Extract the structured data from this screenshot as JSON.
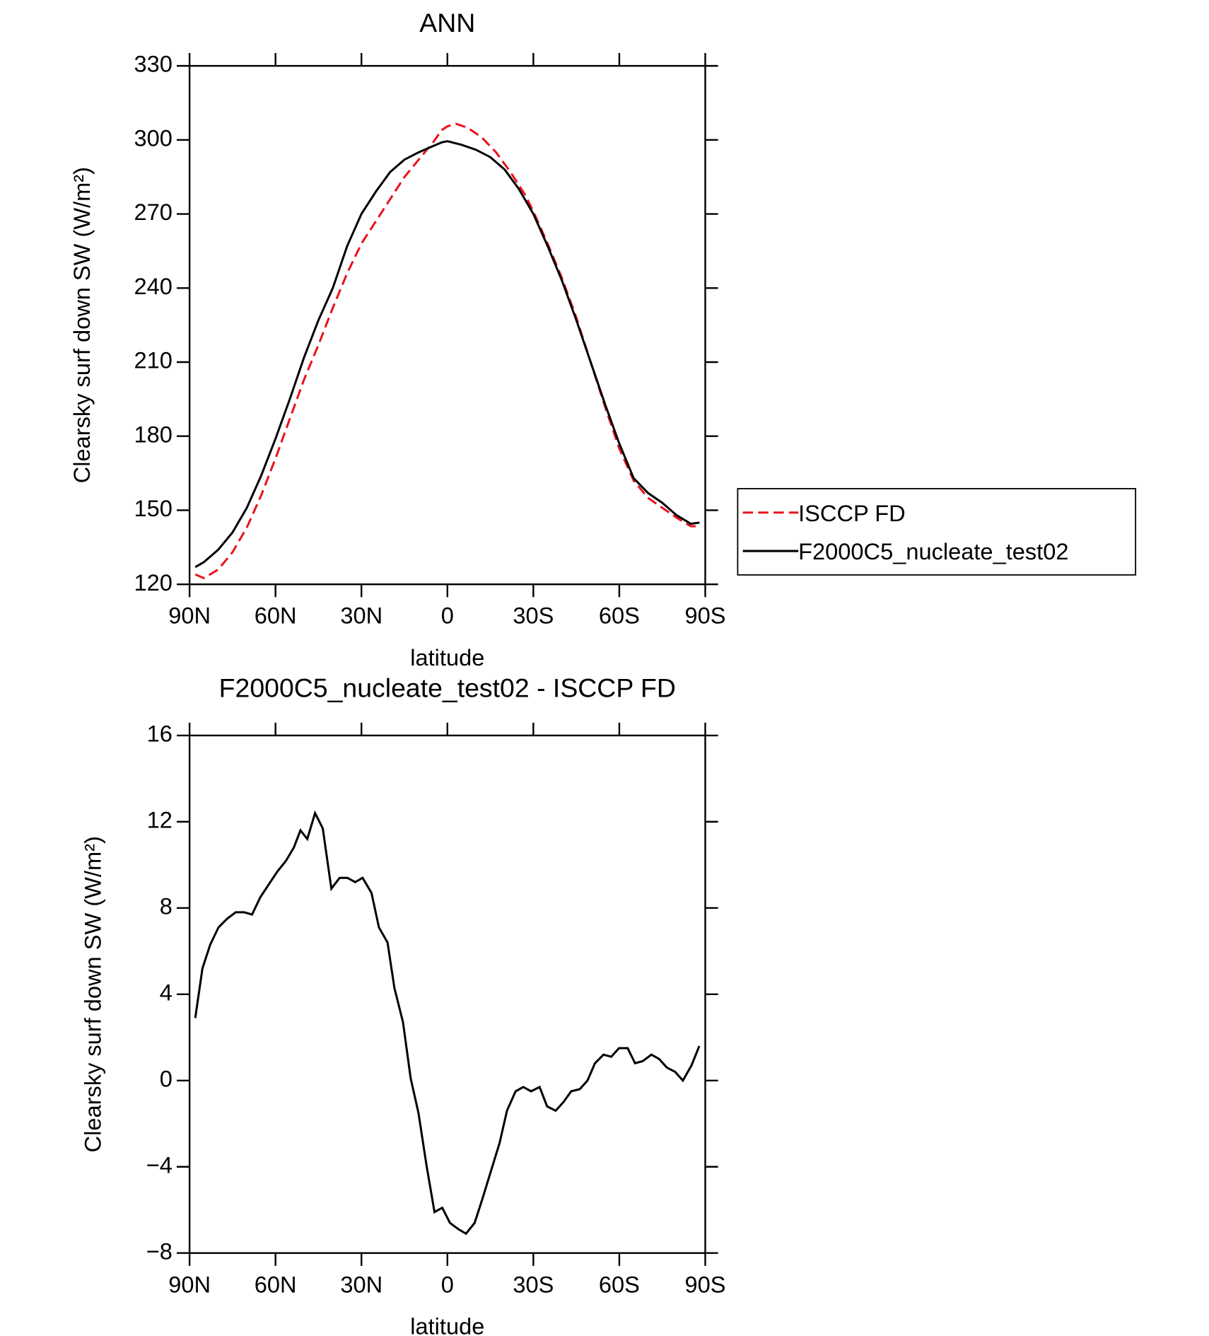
{
  "chart_data": [
    {
      "type": "line",
      "title": "ANN",
      "xlabel": "latitude",
      "ylabel": "Clearsky surf down SW (W/m²)",
      "xlim": [
        90,
        -90
      ],
      "xticks": [
        {
          "value": 90,
          "label": "90N"
        },
        {
          "value": 60,
          "label": "60N"
        },
        {
          "value": 30,
          "label": "30N"
        },
        0,
        {
          "value": -30,
          "label": "30S"
        },
        {
          "value": -60,
          "label": "60S"
        },
        {
          "value": -90,
          "label": "90S"
        }
      ],
      "ylim": [
        120,
        330
      ],
      "yticks": [
        120,
        150,
        180,
        210,
        240,
        270,
        300,
        330
      ],
      "legend": "right",
      "series": [
        {
          "name": "ISCCP FD",
          "color": "#e8141c",
          "dashed": true,
          "x": [
            88,
            85,
            80,
            75,
            70,
            65,
            60,
            55,
            50,
            45,
            40,
            35,
            30,
            25,
            20,
            15,
            10,
            5,
            2,
            0,
            -3,
            -7,
            -12,
            -17,
            -22,
            -27,
            -30,
            -35,
            -40,
            -45,
            -50,
            -55,
            -60,
            -65,
            -70,
            -75,
            -80,
            -85,
            -88
          ],
          "values": [
            124,
            122.5,
            126,
            133,
            143,
            156,
            171,
            187,
            203,
            217,
            232,
            246,
            258,
            267,
            276,
            285,
            292,
            299,
            304,
            305.5,
            306.5,
            305,
            301,
            295,
            287,
            278,
            271,
            258,
            244,
            228,
            210,
            192,
            175,
            162,
            155,
            151,
            147,
            143.5,
            143.5
          ]
        },
        {
          "name": "F2000C5_nucleate_test02",
          "color": "#000000",
          "dashed": false,
          "x": [
            88,
            85,
            80,
            75,
            70,
            65,
            60,
            55,
            50,
            45,
            40,
            35,
            30,
            25,
            20,
            15,
            10,
            5,
            2,
            0,
            -5,
            -10,
            -15,
            -20,
            -25,
            -30,
            -35,
            -40,
            -45,
            -50,
            -55,
            -60,
            -65,
            -70,
            -75,
            -80,
            -85,
            -88
          ],
          "values": [
            127,
            129,
            134,
            141,
            151,
            164,
            179,
            195,
            212,
            227,
            240,
            257,
            270,
            279,
            287,
            292,
            295,
            297.5,
            299,
            299.5,
            298,
            296,
            293,
            288,
            280,
            270,
            257,
            243,
            227,
            210,
            193,
            177,
            163,
            157,
            153,
            148,
            144.5,
            145
          ]
        }
      ]
    },
    {
      "type": "line",
      "title": "F2000C5_nucleate_test02 - ISCCP FD",
      "xlabel": "latitude",
      "ylabel": "Clearsky surf down SW (W/m²)",
      "xlim": [
        90,
        -90
      ],
      "xticks": [
        {
          "value": 90,
          "label": "90N"
        },
        {
          "value": 60,
          "label": "60N"
        },
        {
          "value": 30,
          "label": "30N"
        },
        0,
        {
          "value": -30,
          "label": "30S"
        },
        {
          "value": -60,
          "label": "60S"
        },
        {
          "value": -90,
          "label": "90S"
        }
      ],
      "ylim": [
        -8,
        16
      ],
      "yticks": [
        {
          "value": -8,
          "label": "−8"
        },
        {
          "value": -4,
          "label": "−4"
        },
        0,
        4,
        8,
        12,
        16
      ],
      "series": [
        {
          "color": "#000000",
          "dashed": false,
          "x": [
            88,
            85.5,
            82.8,
            79.9,
            76.9,
            73.9,
            70.9,
            68.2,
            65.3,
            62.3,
            59.3,
            56.3,
            53.6,
            51.3,
            48.9,
            46.2,
            43.5,
            40.5,
            37.6,
            34.9,
            32.2,
            29.6,
            26.5,
            23.9,
            20.9,
            18.5,
            15.5,
            12.8,
            10.1,
            7.2,
            4.5,
            1.8,
            -0.9,
            -3.9,
            -6.5,
            -9.5,
            -12.2,
            -15.2,
            -18.2,
            -20.8,
            -23.8,
            -26.5,
            -29.2,
            -32.2,
            -34.8,
            -37.8,
            -40.5,
            -43.2,
            -46.2,
            -48.9,
            -51.5,
            -54.5,
            -57.2,
            -59.9,
            -62.9,
            -65.5,
            -68.2,
            -71.2,
            -73.9,
            -76.6,
            -79.5,
            -82.2,
            -85.2,
            -87.9
          ],
          "values": [
            2.9,
            5.2,
            6.3,
            7.1,
            7.5,
            7.8,
            7.8,
            7.7,
            8.5,
            9.1,
            9.7,
            10.2,
            10.8,
            11.6,
            11.2,
            12.4,
            11.7,
            8.9,
            9.4,
            9.4,
            9.2,
            9.4,
            8.7,
            7.1,
            6.4,
            4.3,
            2.7,
            0.1,
            -1.5,
            -4.0,
            -6.1,
            -5.9,
            -6.6,
            -6.9,
            -7.1,
            -6.6,
            -5.5,
            -4.2,
            -2.9,
            -1.4,
            -0.5,
            -0.3,
            -0.5,
            -0.3,
            -1.2,
            -1.4,
            -1.0,
            -0.5,
            -0.4,
            0.0,
            0.8,
            1.2,
            1.1,
            1.5,
            1.5,
            0.8,
            0.9,
            1.2,
            1.0,
            0.6,
            0.4,
            0.0,
            0.7,
            1.6
          ]
        }
      ]
    }
  ]
}
